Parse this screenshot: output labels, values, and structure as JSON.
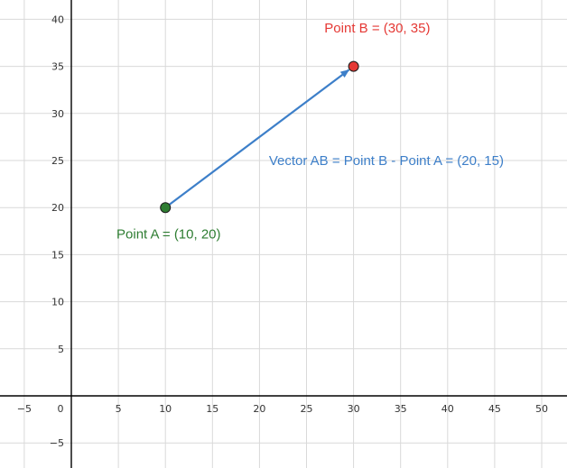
{
  "chart_data": {
    "type": "scatter",
    "xlim": [
      -7,
      52
    ],
    "ylim": [
      -8,
      42
    ],
    "grid": true,
    "x_ticks": [
      -5,
      0,
      5,
      10,
      15,
      20,
      25,
      30,
      35,
      40,
      45,
      50
    ],
    "y_ticks": [
      -5,
      5,
      10,
      15,
      20,
      25,
      30,
      35,
      40
    ],
    "x_tick_labels": [
      "−5",
      "0",
      "5",
      "10",
      "15",
      "20",
      "25",
      "30",
      "35",
      "40",
      "45",
      "50"
    ],
    "y_tick_labels": [
      "−5",
      "5",
      "10",
      "15",
      "20",
      "25",
      "30",
      "35",
      "40"
    ],
    "points": [
      {
        "id": "A",
        "x": 10,
        "y": 20,
        "color": "#2e7d32",
        "label": "Point A = (10, 20)"
      },
      {
        "id": "B",
        "x": 30,
        "y": 35,
        "color": "#e53935",
        "label": "Point B = (30, 35)"
      }
    ],
    "vector": {
      "from": [
        10,
        20
      ],
      "to": [
        30,
        35
      ],
      "color": "#3d7fc9",
      "label": "Vector AB = Point B - Point A = (20, 15)"
    }
  }
}
